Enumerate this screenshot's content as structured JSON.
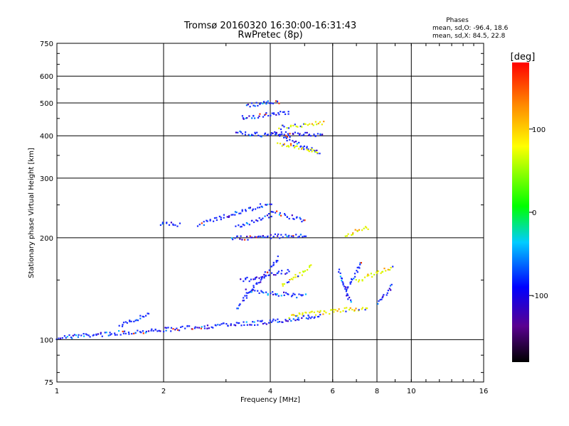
{
  "chart_data": {
    "type": "scatter",
    "title": "Tromsø 20160320 16:30:00-16:31:43",
    "subtitle": "RwPretec (8p)",
    "xlabel": "Frequency [MHz]",
    "ylabel": "Stationary phase Virtual Height [km]",
    "x_scale": "log",
    "y_scale": "log",
    "xlim": [
      1,
      16
    ],
    "ylim": [
      75,
      750
    ],
    "x_ticks": [
      1,
      2,
      4,
      6,
      8,
      10,
      16
    ],
    "y_ticks": [
      75,
      100,
      200,
      300,
      400,
      500,
      600,
      750
    ],
    "grid": true,
    "stats": {
      "heading": "Phases",
      "line1": "mean, sd,O:  -96.4, 18.6",
      "line2": "mean, sd,X:  84.5, 22.8"
    },
    "colorbar": {
      "label": "[deg]",
      "range": [
        -180,
        180
      ],
      "ticks": [
        100,
        0,
        -100
      ],
      "colormap": "rainbow"
    },
    "series": [
      {
        "name": "O",
        "traces": [
          {
            "f_start": 1.0,
            "f_end": 3.8,
            "h_start": 102,
            "h_end": 113
          },
          {
            "f_start": 3.8,
            "f_end": 5.5,
            "h_start": 113,
            "h_end": 118
          },
          {
            "f_start": 1.5,
            "f_end": 1.8,
            "h_start": 110,
            "h_end": 120
          },
          {
            "f_start": 3.2,
            "f_end": 4.2,
            "h_start": 125,
            "h_end": 175
          },
          {
            "f_start": 3.4,
            "f_end": 5.0,
            "h_start": 140,
            "h_end": 135
          },
          {
            "f_start": 3.3,
            "f_end": 4.5,
            "h_start": 150,
            "h_end": 160
          },
          {
            "f_start": 1.95,
            "f_end": 2.2,
            "h_start": 220,
            "h_end": 220
          },
          {
            "f_start": 2.5,
            "f_end": 4.0,
            "h_start": 220,
            "h_end": 255
          },
          {
            "f_start": 3.1,
            "f_end": 5.0,
            "h_start": 200,
            "h_end": 205
          },
          {
            "f_start": 3.2,
            "f_end": 4.0,
            "h_start": 215,
            "h_end": 235
          },
          {
            "f_start": 4.0,
            "f_end": 5.0,
            "h_start": 240,
            "h_end": 225
          },
          {
            "f_start": 3.3,
            "f_end": 4.5,
            "h_start": 455,
            "h_end": 470
          },
          {
            "f_start": 3.2,
            "f_end": 4.5,
            "h_start": 410,
            "h_end": 400
          },
          {
            "f_start": 4.0,
            "f_end": 5.6,
            "h_start": 410,
            "h_end": 405
          },
          {
            "f_start": 3.4,
            "f_end": 4.2,
            "h_start": 495,
            "h_end": 505
          },
          {
            "f_start": 4.4,
            "f_end": 5.5,
            "h_start": 390,
            "h_end": 360
          },
          {
            "f_start": 6.2,
            "f_end": 6.7,
            "h_start": 160,
            "h_end": 130
          },
          {
            "f_start": 8.0,
            "f_end": 8.8,
            "h_start": 130,
            "h_end": 145
          },
          {
            "f_start": 6.5,
            "f_end": 7.2,
            "h_start": 140,
            "h_end": 170
          }
        ]
      },
      {
        "name": "X",
        "traces": [
          {
            "f_start": 4.5,
            "f_end": 7.5,
            "h_start": 118,
            "h_end": 125
          },
          {
            "f_start": 4.3,
            "f_end": 5.2,
            "h_start": 145,
            "h_end": 165
          },
          {
            "f_start": 4.2,
            "f_end": 5.4,
            "h_start": 380,
            "h_end": 360
          },
          {
            "f_start": 7.0,
            "f_end": 8.8,
            "h_start": 150,
            "h_end": 165
          },
          {
            "f_start": 4.2,
            "f_end": 5.6,
            "h_start": 425,
            "h_end": 440
          },
          {
            "f_start": 6.5,
            "f_end": 7.5,
            "h_start": 205,
            "h_end": 215
          }
        ]
      }
    ]
  }
}
